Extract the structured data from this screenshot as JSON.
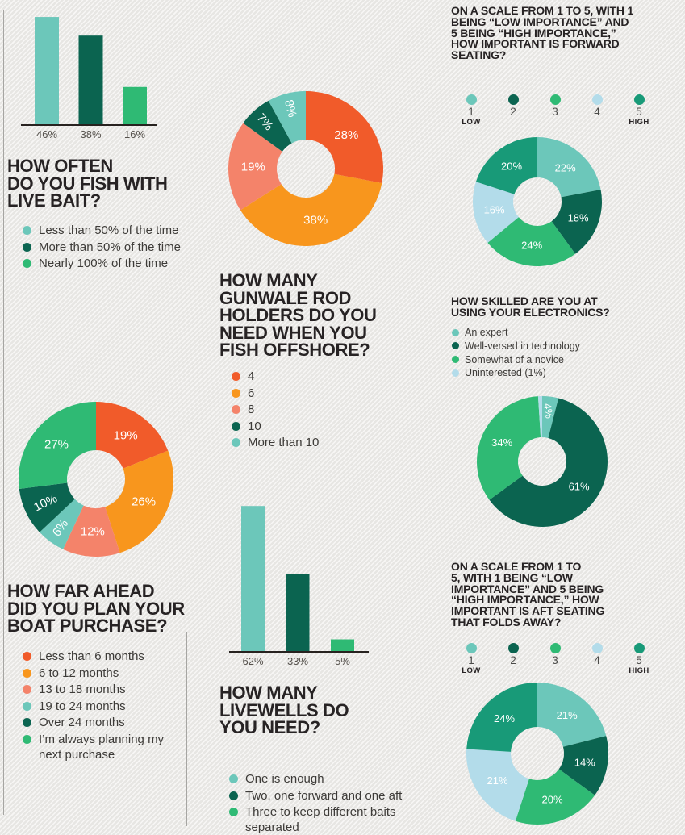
{
  "palette": {
    "light_teal": "#6cc7ba",
    "dark_green": "#0b6450",
    "medium_green": "#2fba74",
    "teal": "#189a78",
    "pale_blue": "#b3dcea",
    "orange_red": "#f15b2a",
    "orange": "#f8961d",
    "salmon": "#f4836a",
    "title_text": "#272324",
    "legend_text": "#3d3b38",
    "pct_label_text": "#56524d"
  },
  "chart_data": [
    {
      "id": "live-bait-bars",
      "type": "bar",
      "title": "HOW OFTEN DO YOU FISH WITH LIVE BAIT?",
      "categories": [
        "Less than 50% of the time",
        "More than 50% of the time",
        "Nearly 100% of the time"
      ],
      "values": [
        46,
        38,
        16
      ],
      "labels": [
        "46%",
        "38%",
        "16%"
      ],
      "colors": [
        "#6cc7ba",
        "#0b6450",
        "#2fba74"
      ],
      "ylim": [
        0,
        50
      ],
      "grid": false,
      "legend_position": "below-title"
    },
    {
      "id": "gunwale-rod-holders-donut",
      "type": "pie",
      "title": "HOW MANY GUNWALE ROD HOLDERS DO YOU NEED WHEN YOU FISH OFFSHORE?",
      "slices": [
        {
          "category": "4",
          "value": 28,
          "label": "28%",
          "color": "#f15b2a"
        },
        {
          "category": "6",
          "value": 38,
          "label": "38%",
          "color": "#f8961d"
        },
        {
          "category": "8",
          "value": 19,
          "label": "19%",
          "color": "#f4836a"
        },
        {
          "category": "10",
          "value": 7,
          "label": "7%",
          "color": "#0b6450",
          "rot": 49,
          "lrf": 0.8
        },
        {
          "category": "More than 10",
          "value": 8,
          "label": "8%",
          "color": "#6cc7ba",
          "rot": 76,
          "lrf": 0.8
        }
      ]
    },
    {
      "id": "boat-purchase-plan-donut",
      "type": "pie",
      "title": "HOW FAR AHEAD DID YOU PLAN YOUR BOAT PURCHASE?",
      "slices": [
        {
          "category": "Less than 6 months",
          "value": 19,
          "label": "19%",
          "color": "#f15b2a"
        },
        {
          "category": "6 to 12 months",
          "value": 26,
          "label": "26%",
          "color": "#f8961d"
        },
        {
          "category": "13 to 18 months",
          "value": 12,
          "label": "12%",
          "color": "#f4836a"
        },
        {
          "category": "19 to 24 months",
          "value": 6,
          "label": "6%",
          "color": "#6cc7ba",
          "rot": -54,
          "lrf": 0.78
        },
        {
          "category": "Over 24 months",
          "value": 10,
          "label": "10%",
          "color": "#0b6450",
          "rot": -25,
          "lrf": 0.72
        },
        {
          "category": "I'm always planning my next purchase",
          "value": 27,
          "label": "27%",
          "color": "#2fba74"
        }
      ]
    },
    {
      "id": "forward-seating-importance-donut",
      "type": "pie",
      "title": "ON A SCALE FROM 1 TO 5, WITH 1 BEING “LOW IMPORTANCE” AND 5 BEING “HIGH IMPORTANCE,” HOW IMPORTANT IS FORWARD SEATING?",
      "slices": [
        {
          "category": "1 (low)",
          "value": 22,
          "label": "22%",
          "color": "#6cc7ba"
        },
        {
          "category": "2",
          "value": 18,
          "label": "18%",
          "color": "#0b6450"
        },
        {
          "category": "3",
          "value": 24,
          "label": "24%",
          "color": "#2fba74"
        },
        {
          "category": "4",
          "value": 16,
          "label": "16%",
          "color": "#b3dcea"
        },
        {
          "category": "5 (high)",
          "value": 20,
          "label": "20%",
          "color": "#189a78"
        }
      ]
    },
    {
      "id": "electronics-skill-donut",
      "type": "pie",
      "title": "HOW SKILLED ARE YOU AT USING YOUR ELECTRONICS?",
      "slices": [
        {
          "category": "An expert",
          "value": 4,
          "label": "4%",
          "color": "#6cc7ba",
          "rot": 82,
          "lrf": 0.78
        },
        {
          "category": "Well-versed in technology",
          "value": 61,
          "label": "61%",
          "color": "#0b6450"
        },
        {
          "category": "Somewhat of a novice",
          "value": 34,
          "label": "34%",
          "color": "#2fba74"
        },
        {
          "category": "Uninterested",
          "value": 1,
          "label": "",
          "color": "#b3dcea"
        }
      ]
    },
    {
      "id": "livewells-bars",
      "type": "bar",
      "title": "HOW MANY LIVEWELLS DO YOU NEED?",
      "categories": [
        "One is enough",
        "Two, one forward and one aft",
        "Three to keep different baits separated"
      ],
      "values": [
        62,
        33,
        5
      ],
      "labels": [
        "62%",
        "33%",
        "5%"
      ],
      "colors": [
        "#6cc7ba",
        "#0b6450",
        "#2fba74"
      ],
      "ylim": [
        0,
        65
      ],
      "grid": false,
      "legend_position": "below-title"
    },
    {
      "id": "aft-seating-importance-donut",
      "type": "pie",
      "title": "ON A SCALE FROM 1 TO 5, WITH 1 BEING “LOW IMPORTANCE” AND 5 BEING “HIGH IMPORTANCE,” HOW IMPORTANT IS AFT SEATING THAT FOLDS AWAY?",
      "slices": [
        {
          "category": "1 (low)",
          "value": 21,
          "label": "21%",
          "color": "#6cc7ba"
        },
        {
          "category": "2",
          "value": 14,
          "label": "14%",
          "color": "#0b6450"
        },
        {
          "category": "3",
          "value": 20,
          "label": "20%",
          "color": "#2fba74"
        },
        {
          "category": "4",
          "value": 21,
          "label": "21%",
          "color": "#b3dcea"
        },
        {
          "category": "5 (high)",
          "value": 24,
          "label": "24%",
          "color": "#189a78"
        }
      ]
    }
  ],
  "sections": {
    "live_bait": {
      "title": "HOW OFTEN\nDO YOU FISH WITH\nLIVE BAIT?",
      "legend": [
        {
          "label": "Less than 50% of the time",
          "color": "#6cc7ba"
        },
        {
          "label": "More than 50% of the time",
          "color": "#0b6450"
        },
        {
          "label": "Nearly 100% of the time",
          "color": "#2fba74"
        }
      ]
    },
    "gunwale": {
      "title": "HOW MANY\nGUNWALE ROD\nHOLDERS DO YOU\nNEED WHEN YOU\nFISH OFFSHORE?",
      "legend": [
        {
          "label": "4",
          "color": "#f15b2a"
        },
        {
          "label": "6",
          "color": "#f8961d"
        },
        {
          "label": "8",
          "color": "#f4836a"
        },
        {
          "label": "10",
          "color": "#0b6450"
        },
        {
          "label": "More than 10",
          "color": "#6cc7ba"
        }
      ]
    },
    "boat": {
      "title": "HOW FAR AHEAD\nDID YOU PLAN YOUR\nBOAT PURCHASE?",
      "legend": [
        {
          "label": "Less than 6 months",
          "color": "#f15b2a"
        },
        {
          "label": "6 to 12 months",
          "color": "#f8961d"
        },
        {
          "label": "13 to 18 months",
          "color": "#f4836a"
        },
        {
          "label": "19 to 24 months",
          "color": "#6cc7ba"
        },
        {
          "label": "Over 24 months",
          "color": "#0b6450"
        },
        {
          "label": "I’m always planning my next purchase",
          "color": "#2fba74"
        }
      ]
    },
    "livewells": {
      "title": "HOW MANY\nLIVEWELLS DO\nYOU NEED?",
      "legend": [
        {
          "label": "One is enough",
          "color": "#6cc7ba"
        },
        {
          "label": "Two, one forward and one aft",
          "color": "#0b6450"
        },
        {
          "label": "Three to keep different baits separated",
          "color": "#2fba74"
        }
      ]
    },
    "forward": {
      "title": "ON A SCALE FROM 1 TO 5, WITH 1\nBEING “LOW IMPORTANCE” AND\n5 BEING “HIGH IMPORTANCE,”\nHOW IMPORTANT IS FORWARD\nSEATING?",
      "scale": {
        "points": [
          {
            "value": "1",
            "sub": "LOW",
            "color": "#6cc7ba"
          },
          {
            "value": "2",
            "sub": "",
            "color": "#0b6450"
          },
          {
            "value": "3",
            "sub": "",
            "color": "#2fba74"
          },
          {
            "value": "4",
            "sub": "",
            "color": "#b3dcea"
          },
          {
            "value": "5",
            "sub": "HIGH",
            "color": "#189a78"
          }
        ]
      }
    },
    "electronics": {
      "title": "HOW SKILLED ARE YOU AT\nUSING YOUR ELECTRONICS?",
      "legend": [
        {
          "label": "An expert",
          "color": "#6cc7ba"
        },
        {
          "label": "Well-versed in technology",
          "color": "#0b6450"
        },
        {
          "label": "Somewhat of a novice",
          "color": "#2fba74"
        },
        {
          "label": "Uninterested (1%)",
          "color": "#b3dcea"
        }
      ]
    },
    "aft": {
      "title": "ON A SCALE FROM 1 TO\n5, WITH 1 BEING “LOW\nIMPORTANCE” AND 5 BEING\n“HIGH IMPORTANCE,” HOW\nIMPORTANT IS AFT SEATING\nTHAT FOLDS AWAY?",
      "scale": {
        "points": [
          {
            "value": "1",
            "sub": "LOW",
            "color": "#6cc7ba"
          },
          {
            "value": "2",
            "sub": "",
            "color": "#0b6450"
          },
          {
            "value": "3",
            "sub": "",
            "color": "#2fba74"
          },
          {
            "value": "4",
            "sub": "",
            "color": "#b3dcea"
          },
          {
            "value": "5",
            "sub": "HIGH",
            "color": "#189a78"
          }
        ]
      }
    }
  }
}
